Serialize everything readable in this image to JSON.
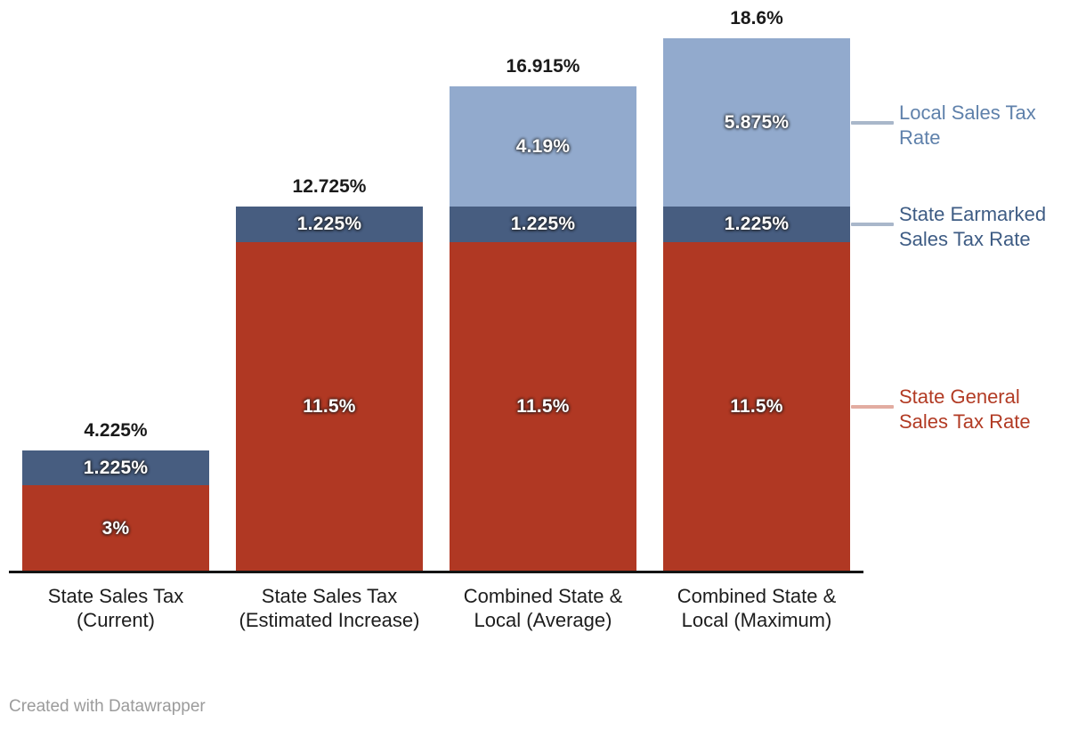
{
  "chart_data": {
    "type": "bar",
    "stacked": true,
    "orientation": "vertical",
    "unit": "%",
    "grid": false,
    "legend_position": "right",
    "ylim": [
      0,
      18.6
    ],
    "categories": [
      "State Sales Tax (Current)",
      "State Sales Tax (Estimated Increase)",
      "Combined State & Local (Average)",
      "Combined State & Local (Maximum)"
    ],
    "series": [
      {
        "name": "State General Sales Tax Rate",
        "color": "#b03823",
        "values": [
          3,
          11.5,
          11.5,
          11.5
        ],
        "labels": [
          "3%",
          "11.5%",
          "11.5%",
          "11.5%"
        ]
      },
      {
        "name": "State Earmarked Sales Tax Rate",
        "color": "#475d80",
        "values": [
          1.225,
          1.225,
          1.225,
          1.225
        ],
        "labels": [
          "1.225%",
          "1.225%",
          "1.225%",
          "1.225%"
        ]
      },
      {
        "name": "Local Sales Tax Rate",
        "color": "#92aacd",
        "values": [
          null,
          null,
          4.19,
          5.875
        ],
        "labels": [
          "",
          "",
          "4.19%",
          "5.875%"
        ]
      }
    ],
    "totals": [
      4.225,
      12.725,
      16.915,
      18.6
    ],
    "total_labels": [
      "4.225%",
      "12.725%",
      "16.915%",
      "18.6%"
    ]
  },
  "legend": {
    "items": [
      {
        "label": "Local Sales Tax Rate",
        "series": "Local Sales Tax Rate",
        "text_color": "#5f81ab",
        "line_color": "#a9b7ca"
      },
      {
        "label": "State Earmarked Sales Tax Rate",
        "series": "State Earmarked Sales Tax Rate",
        "text_color": "#3e5c84",
        "line_color": "#a9b7ca"
      },
      {
        "label": "State General Sales Tax Rate",
        "series": "State General Sales Tax Rate",
        "text_color": "#b23b24",
        "line_color": "#e2aca1"
      }
    ]
  },
  "footer": {
    "credit": "Created with Datawrapper"
  }
}
